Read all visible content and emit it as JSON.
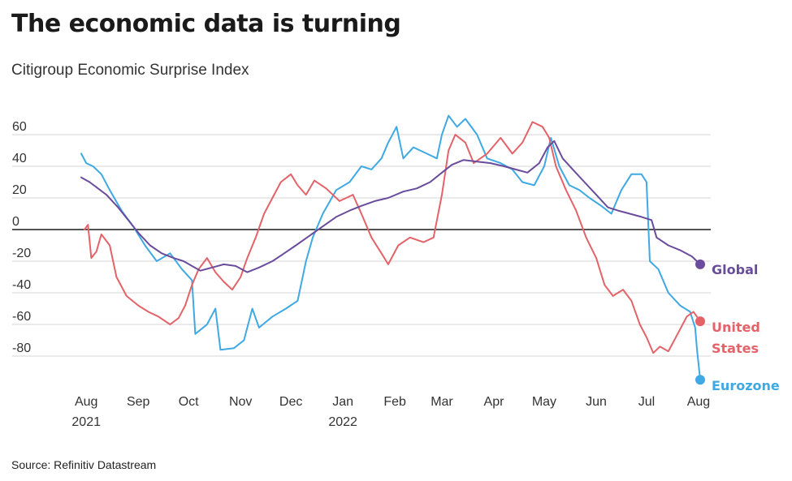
{
  "title": "The economic data is turning",
  "subtitle": "Citigroup Economic Surprise Index",
  "source": "Source: Refinitiv Datastream",
  "chart_data": {
    "type": "line",
    "title": "The economic data is turning",
    "subtitle": "Citigroup Economic Surprise Index",
    "xlabel": "",
    "ylabel": "",
    "ylim": [
      -90,
      70
    ],
    "yticks": [
      "60",
      "40",
      "20",
      "0",
      "-20",
      "-40",
      "-60",
      "-80"
    ],
    "ytick_values": [
      60,
      40,
      20,
      0,
      -20,
      -40,
      -60,
      -80
    ],
    "xticks": [
      {
        "label": "Aug",
        "year": "2021",
        "date": "2021-08-01"
      },
      {
        "label": "Sep",
        "year": "",
        "date": "2021-09-01"
      },
      {
        "label": "Oct",
        "year": "",
        "date": "2021-10-01"
      },
      {
        "label": "Nov",
        "year": "",
        "date": "2021-11-01"
      },
      {
        "label": "Dec",
        "year": "",
        "date": "2021-12-01"
      },
      {
        "label": "Jan",
        "year": "2022",
        "date": "2022-01-01"
      },
      {
        "label": "Feb",
        "year": "",
        "date": "2022-02-01"
      },
      {
        "label": "Mar",
        "year": "",
        "date": "2022-03-01"
      },
      {
        "label": "Apr",
        "year": "",
        "date": "2022-04-01"
      },
      {
        "label": "May",
        "year": "",
        "date": "2022-05-01"
      },
      {
        "label": "Jun",
        "year": "",
        "date": "2022-06-01"
      },
      {
        "label": "Jul",
        "year": "",
        "date": "2022-07-01"
      },
      {
        "label": "Aug",
        "year": "",
        "date": "2022-08-01"
      }
    ],
    "grid": "horizontal",
    "legend": "end labels on the right",
    "series": [
      {
        "name": "Global",
        "label_lines": [
          "Global"
        ],
        "color": "#6a4c9c",
        "points": [
          [
            "2021-07-29",
            33
          ],
          [
            "2021-08-03",
            30
          ],
          [
            "2021-08-08",
            26
          ],
          [
            "2021-08-13",
            22
          ],
          [
            "2021-08-20",
            14
          ],
          [
            "2021-08-26",
            6
          ],
          [
            "2021-09-01",
            -2
          ],
          [
            "2021-09-08",
            -10
          ],
          [
            "2021-09-15",
            -15
          ],
          [
            "2021-09-22",
            -18
          ],
          [
            "2021-09-28",
            -20
          ],
          [
            "2021-10-03",
            -23
          ],
          [
            "2021-10-08",
            -26
          ],
          [
            "2021-10-15",
            -24
          ],
          [
            "2021-10-22",
            -22
          ],
          [
            "2021-10-29",
            -23
          ],
          [
            "2021-11-05",
            -27
          ],
          [
            "2021-11-12",
            -24
          ],
          [
            "2021-11-20",
            -20
          ],
          [
            "2021-11-27",
            -15
          ],
          [
            "2021-12-04",
            -10
          ],
          [
            "2021-12-12",
            -4
          ],
          [
            "2021-12-20",
            2
          ],
          [
            "2021-12-28",
            8
          ],
          [
            "2022-01-05",
            12
          ],
          [
            "2022-01-12",
            15
          ],
          [
            "2022-01-20",
            18
          ],
          [
            "2022-01-28",
            20
          ],
          [
            "2022-02-06",
            24
          ],
          [
            "2022-02-14",
            26
          ],
          [
            "2022-02-22",
            30
          ],
          [
            "2022-03-01",
            36
          ],
          [
            "2022-03-07",
            41
          ],
          [
            "2022-03-14",
            44
          ],
          [
            "2022-03-22",
            43
          ],
          [
            "2022-03-30",
            42
          ],
          [
            "2022-04-07",
            40
          ],
          [
            "2022-04-14",
            38
          ],
          [
            "2022-04-21",
            36
          ],
          [
            "2022-04-28",
            42
          ],
          [
            "2022-05-03",
            52
          ],
          [
            "2022-05-07",
            56
          ],
          [
            "2022-05-12",
            45
          ],
          [
            "2022-05-18",
            38
          ],
          [
            "2022-05-25",
            30
          ],
          [
            "2022-06-01",
            22
          ],
          [
            "2022-06-08",
            14
          ],
          [
            "2022-06-14",
            12
          ],
          [
            "2022-06-21",
            10
          ],
          [
            "2022-06-28",
            8
          ],
          [
            "2022-07-04",
            6
          ],
          [
            "2022-07-07",
            -5
          ],
          [
            "2022-07-14",
            -10
          ],
          [
            "2022-07-21",
            -13
          ],
          [
            "2022-07-28",
            -17
          ],
          [
            "2022-08-02",
            -22
          ]
        ]
      },
      {
        "name": "United States",
        "label_lines": [
          "United",
          "States"
        ],
        "color": "#e36369",
        "points": [
          [
            "2021-07-31",
            0
          ],
          [
            "2021-08-02",
            3
          ],
          [
            "2021-08-04",
            -18
          ],
          [
            "2021-08-07",
            -14
          ],
          [
            "2021-08-10",
            -3
          ],
          [
            "2021-08-15",
            -10
          ],
          [
            "2021-08-19",
            -30
          ],
          [
            "2021-08-25",
            -42
          ],
          [
            "2021-09-01",
            -48
          ],
          [
            "2021-09-07",
            -52
          ],
          [
            "2021-09-13",
            -55
          ],
          [
            "2021-09-20",
            -60
          ],
          [
            "2021-09-25",
            -56
          ],
          [
            "2021-09-29",
            -48
          ],
          [
            "2021-10-03",
            -35
          ],
          [
            "2021-10-07",
            -25
          ],
          [
            "2021-10-12",
            -18
          ],
          [
            "2021-10-17",
            -27
          ],
          [
            "2021-10-22",
            -33
          ],
          [
            "2021-10-27",
            -38
          ],
          [
            "2021-11-01",
            -30
          ],
          [
            "2021-11-05",
            -18
          ],
          [
            "2021-11-10",
            -5
          ],
          [
            "2021-11-15",
            10
          ],
          [
            "2021-11-20",
            20
          ],
          [
            "2021-11-25",
            30
          ],
          [
            "2021-12-01",
            35
          ],
          [
            "2021-12-05",
            28
          ],
          [
            "2021-12-10",
            22
          ],
          [
            "2021-12-15",
            31
          ],
          [
            "2021-12-22",
            26
          ],
          [
            "2021-12-30",
            18
          ],
          [
            "2022-01-07",
            22
          ],
          [
            "2022-01-12",
            10
          ],
          [
            "2022-01-18",
            -5
          ],
          [
            "2022-01-24",
            -15
          ],
          [
            "2022-01-28",
            -22
          ],
          [
            "2022-02-03",
            -10
          ],
          [
            "2022-02-10",
            -5
          ],
          [
            "2022-02-18",
            -8
          ],
          [
            "2022-02-24",
            -5
          ],
          [
            "2022-03-01",
            22
          ],
          [
            "2022-03-05",
            50
          ],
          [
            "2022-03-09",
            60
          ],
          [
            "2022-03-15",
            55
          ],
          [
            "2022-03-20",
            42
          ],
          [
            "2022-03-28",
            48
          ],
          [
            "2022-04-05",
            58
          ],
          [
            "2022-04-12",
            48
          ],
          [
            "2022-04-18",
            55
          ],
          [
            "2022-04-24",
            68
          ],
          [
            "2022-04-30",
            65
          ],
          [
            "2022-05-04",
            58
          ],
          [
            "2022-05-08",
            40
          ],
          [
            "2022-05-14",
            25
          ],
          [
            "2022-05-20",
            12
          ],
          [
            "2022-05-26",
            -5
          ],
          [
            "2022-06-01",
            -18
          ],
          [
            "2022-06-06",
            -35
          ],
          [
            "2022-06-11",
            -42
          ],
          [
            "2022-06-17",
            -38
          ],
          [
            "2022-06-22",
            -45
          ],
          [
            "2022-06-27",
            -60
          ],
          [
            "2022-07-01",
            -68
          ],
          [
            "2022-07-05",
            -78
          ],
          [
            "2022-07-09",
            -74
          ],
          [
            "2022-07-14",
            -77
          ],
          [
            "2022-07-20",
            -65
          ],
          [
            "2022-07-25",
            -55
          ],
          [
            "2022-07-29",
            -52
          ],
          [
            "2022-08-02",
            -58
          ]
        ]
      },
      {
        "name": "Eurozone",
        "label_lines": [
          "Eurozone"
        ],
        "color": "#3fa9e3",
        "points": [
          [
            "2021-07-29",
            48
          ],
          [
            "2021-08-01",
            42
          ],
          [
            "2021-08-05",
            40
          ],
          [
            "2021-08-10",
            35
          ],
          [
            "2021-08-15",
            25
          ],
          [
            "2021-08-22",
            12
          ],
          [
            "2021-08-29",
            2
          ],
          [
            "2021-09-05",
            -10
          ],
          [
            "2021-09-12",
            -20
          ],
          [
            "2021-09-20",
            -15
          ],
          [
            "2021-09-27",
            -25
          ],
          [
            "2021-10-03",
            -32
          ],
          [
            "2021-10-05",
            -66
          ],
          [
            "2021-10-12",
            -60
          ],
          [
            "2021-10-17",
            -50
          ],
          [
            "2021-10-20",
            -76
          ],
          [
            "2021-10-28",
            -75
          ],
          [
            "2021-11-03",
            -70
          ],
          [
            "2021-11-08",
            -50
          ],
          [
            "2021-11-12",
            -62
          ],
          [
            "2021-11-20",
            -55
          ],
          [
            "2021-11-28",
            -50
          ],
          [
            "2021-12-05",
            -45
          ],
          [
            "2021-12-10",
            -20
          ],
          [
            "2021-12-14",
            -5
          ],
          [
            "2021-12-20",
            10
          ],
          [
            "2021-12-28",
            25
          ],
          [
            "2022-01-05",
            30
          ],
          [
            "2022-01-12",
            40
          ],
          [
            "2022-01-18",
            38
          ],
          [
            "2022-01-24",
            45
          ],
          [
            "2022-01-28",
            55
          ],
          [
            "2022-02-02",
            65
          ],
          [
            "2022-02-06",
            45
          ],
          [
            "2022-02-12",
            52
          ],
          [
            "2022-02-20",
            48
          ],
          [
            "2022-02-26",
            45
          ],
          [
            "2022-03-01",
            60
          ],
          [
            "2022-03-05",
            72
          ],
          [
            "2022-03-10",
            65
          ],
          [
            "2022-03-15",
            70
          ],
          [
            "2022-03-22",
            60
          ],
          [
            "2022-03-28",
            45
          ],
          [
            "2022-04-05",
            42
          ],
          [
            "2022-04-12",
            38
          ],
          [
            "2022-04-18",
            30
          ],
          [
            "2022-04-25",
            28
          ],
          [
            "2022-05-01",
            40
          ],
          [
            "2022-05-05",
            58
          ],
          [
            "2022-05-10",
            40
          ],
          [
            "2022-05-16",
            28
          ],
          [
            "2022-05-22",
            25
          ],
          [
            "2022-05-28",
            20
          ],
          [
            "2022-06-04",
            15
          ],
          [
            "2022-06-10",
            10
          ],
          [
            "2022-06-16",
            25
          ],
          [
            "2022-06-22",
            35
          ],
          [
            "2022-06-28",
            35
          ],
          [
            "2022-07-01",
            30
          ],
          [
            "2022-07-03",
            -20
          ],
          [
            "2022-07-08",
            -25
          ],
          [
            "2022-07-14",
            -40
          ],
          [
            "2022-07-21",
            -48
          ],
          [
            "2022-07-27",
            -52
          ],
          [
            "2022-07-30",
            -62
          ],
          [
            "2022-07-31",
            -75
          ],
          [
            "2022-08-02",
            -95
          ]
        ]
      }
    ]
  }
}
